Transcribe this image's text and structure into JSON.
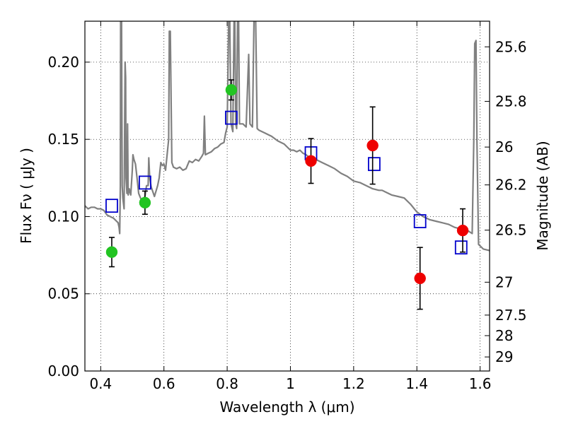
{
  "chart_data": {
    "type": "scatter",
    "xlabel": "Wavelength  λ (μm)",
    "ylabel": "Flux  Fν  ( μJy )",
    "ylabel_right": "Magnitude (AB)",
    "xlim": [
      0.35,
      1.63
    ],
    "ylim": [
      0.0,
      0.2265
    ],
    "grid": true,
    "x_ticks": [
      {
        "value": 0.4,
        "label": "0.4"
      },
      {
        "value": 0.6,
        "label": "0.6"
      },
      {
        "value": 0.8,
        "label": "0.8"
      },
      {
        "value": 1.0,
        "label": "1"
      },
      {
        "value": 1.2,
        "label": "1.2"
      },
      {
        "value": 1.4,
        "label": "1.4"
      },
      {
        "value": 1.6,
        "label": "1.6"
      }
    ],
    "y_ticks": [
      {
        "value": 0.0,
        "label": "0.00"
      },
      {
        "value": 0.05,
        "label": "0.05"
      },
      {
        "value": 0.1,
        "label": "0.10"
      },
      {
        "value": 0.15,
        "label": "0.15"
      },
      {
        "value": 0.2,
        "label": "0.20"
      }
    ],
    "magnitude_ticks": [
      {
        "flux": 0.2099,
        "label": "25.6"
      },
      {
        "flux": 0.1746,
        "label": "25.8"
      },
      {
        "flux": 0.145,
        "label": "26"
      },
      {
        "flux": 0.1205,
        "label": "26.2"
      },
      {
        "flux": 0.0912,
        "label": "26.5"
      },
      {
        "flux": 0.0575,
        "label": "27"
      },
      {
        "flux": 0.0362,
        "label": "27.5"
      },
      {
        "flux": 0.0229,
        "label": "28"
      },
      {
        "flux": 0.0091,
        "label": "29"
      }
    ],
    "series": [
      {
        "color": "#808080",
        "marker": "line",
        "points": [
          [
            0.35,
            0.107
          ],
          [
            0.36,
            0.105
          ],
          [
            0.37,
            0.106
          ],
          [
            0.38,
            0.106
          ],
          [
            0.39,
            0.105
          ],
          [
            0.4,
            0.105
          ],
          [
            0.41,
            0.104
          ],
          [
            0.42,
            0.101
          ],
          [
            0.43,
            0.1
          ],
          [
            0.44,
            0.099
          ],
          [
            0.445,
            0.098
          ],
          [
            0.45,
            0.097
          ],
          [
            0.455,
            0.096
          ],
          [
            0.458,
            0.093
          ],
          [
            0.46,
            0.089
          ],
          [
            0.462,
            0.12
          ],
          [
            0.463,
            0.23
          ],
          [
            0.466,
            0.23
          ],
          [
            0.468,
            0.12
          ],
          [
            0.47,
            0.112
          ],
          [
            0.474,
            0.105
          ],
          [
            0.477,
            0.2
          ],
          [
            0.479,
            0.19
          ],
          [
            0.48,
            0.125
          ],
          [
            0.483,
            0.115
          ],
          [
            0.485,
            0.16
          ],
          [
            0.487,
            0.114
          ],
          [
            0.49,
            0.118
          ],
          [
            0.495,
            0.114
          ],
          [
            0.5,
            0.13
          ],
          [
            0.502,
            0.14
          ],
          [
            0.505,
            0.137
          ],
          [
            0.51,
            0.134
          ],
          [
            0.515,
            0.125
          ],
          [
            0.52,
            0.115
          ],
          [
            0.53,
            0.11
          ],
          [
            0.54,
            0.113
          ],
          [
            0.545,
            0.12
          ],
          [
            0.55,
            0.12
          ],
          [
            0.552,
            0.138
          ],
          [
            0.555,
            0.125
          ],
          [
            0.56,
            0.119
          ],
          [
            0.57,
            0.113
          ],
          [
            0.58,
            0.12
          ],
          [
            0.585,
            0.125
          ],
          [
            0.59,
            0.135
          ],
          [
            0.595,
            0.133
          ],
          [
            0.6,
            0.134
          ],
          [
            0.605,
            0.13
          ],
          [
            0.61,
            0.14
          ],
          [
            0.615,
            0.15
          ],
          [
            0.617,
            0.22
          ],
          [
            0.62,
            0.22
          ],
          [
            0.625,
            0.135
          ],
          [
            0.63,
            0.132
          ],
          [
            0.64,
            0.131
          ],
          [
            0.65,
            0.132
          ],
          [
            0.66,
            0.13
          ],
          [
            0.67,
            0.131
          ],
          [
            0.68,
            0.136
          ],
          [
            0.69,
            0.135
          ],
          [
            0.7,
            0.137
          ],
          [
            0.71,
            0.136
          ],
          [
            0.72,
            0.139
          ],
          [
            0.725,
            0.141
          ],
          [
            0.728,
            0.165
          ],
          [
            0.731,
            0.14
          ],
          [
            0.74,
            0.141
          ],
          [
            0.75,
            0.142
          ],
          [
            0.76,
            0.144
          ],
          [
            0.77,
            0.145
          ],
          [
            0.78,
            0.147
          ],
          [
            0.79,
            0.148
          ],
          [
            0.795,
            0.154
          ],
          [
            0.8,
            0.158
          ],
          [
            0.805,
            0.23
          ],
          [
            0.808,
            0.23
          ],
          [
            0.812,
            0.16
          ],
          [
            0.818,
            0.155
          ],
          [
            0.822,
            0.23
          ],
          [
            0.824,
            0.23
          ],
          [
            0.827,
            0.16
          ],
          [
            0.83,
            0.157
          ],
          [
            0.833,
            0.23
          ],
          [
            0.836,
            0.23
          ],
          [
            0.839,
            0.16
          ],
          [
            0.85,
            0.16
          ],
          [
            0.86,
            0.158
          ],
          [
            0.868,
            0.205
          ],
          [
            0.872,
            0.16
          ],
          [
            0.88,
            0.158
          ],
          [
            0.885,
            0.23
          ],
          [
            0.89,
            0.23
          ],
          [
            0.895,
            0.157
          ],
          [
            0.9,
            0.156
          ],
          [
            0.92,
            0.154
          ],
          [
            0.94,
            0.152
          ],
          [
            0.96,
            0.149
          ],
          [
            0.98,
            0.147
          ],
          [
            0.99,
            0.145
          ],
          [
            1.0,
            0.143
          ],
          [
            1.01,
            0.143
          ],
          [
            1.02,
            0.142
          ],
          [
            1.03,
            0.143
          ],
          [
            1.04,
            0.141
          ],
          [
            1.05,
            0.14
          ],
          [
            1.06,
            0.138
          ],
          [
            1.07,
            0.136
          ],
          [
            1.08,
            0.137
          ],
          [
            1.09,
            0.136
          ],
          [
            1.1,
            0.135
          ],
          [
            1.12,
            0.133
          ],
          [
            1.14,
            0.131
          ],
          [
            1.16,
            0.128
          ],
          [
            1.18,
            0.126
          ],
          [
            1.2,
            0.123
          ],
          [
            1.22,
            0.122
          ],
          [
            1.24,
            0.12
          ],
          [
            1.26,
            0.118
          ],
          [
            1.28,
            0.117
          ],
          [
            1.29,
            0.117
          ],
          [
            1.3,
            0.116
          ],
          [
            1.32,
            0.114
          ],
          [
            1.34,
            0.113
          ],
          [
            1.36,
            0.112
          ],
          [
            1.38,
            0.108
          ],
          [
            1.4,
            0.103
          ],
          [
            1.42,
            0.1
          ],
          [
            1.44,
            0.098
          ],
          [
            1.46,
            0.097
          ],
          [
            1.48,
            0.096
          ],
          [
            1.5,
            0.095
          ],
          [
            1.52,
            0.093
          ],
          [
            1.54,
            0.092
          ],
          [
            1.56,
            0.091
          ],
          [
            1.575,
            0.089
          ],
          [
            1.58,
            0.15
          ],
          [
            1.583,
            0.212
          ],
          [
            1.587,
            0.214
          ],
          [
            1.59,
            0.15
          ],
          [
            1.595,
            0.082
          ],
          [
            1.61,
            0.079
          ],
          [
            1.63,
            0.078
          ]
        ]
      },
      {
        "color": "#0000cc",
        "marker": "square-open",
        "points": [
          [
            0.435,
            0.107
          ],
          [
            0.54,
            0.122
          ],
          [
            0.813,
            0.164
          ],
          [
            1.065,
            0.141
          ],
          [
            1.265,
            0.134
          ],
          [
            1.41,
            0.097
          ],
          [
            1.54,
            0.08
          ]
        ]
      },
      {
        "color": "#22c422",
        "marker": "circle",
        "points": [
          {
            "x": 0.435,
            "y": 0.077,
            "err": 0.0095
          },
          {
            "x": 0.54,
            "y": 0.109,
            "err": 0.0075
          },
          {
            "x": 0.813,
            "y": 0.182,
            "err": 0.0065
          }
        ]
      },
      {
        "color": "#ee0000",
        "marker": "circle",
        "points": [
          {
            "x": 1.065,
            "y": 0.136,
            "err": 0.0145
          },
          {
            "x": 1.26,
            "y": 0.146,
            "err": 0.025
          },
          {
            "x": 1.41,
            "y": 0.06,
            "err": 0.02
          },
          {
            "x": 1.545,
            "y": 0.091,
            "err": 0.014
          }
        ]
      }
    ]
  }
}
